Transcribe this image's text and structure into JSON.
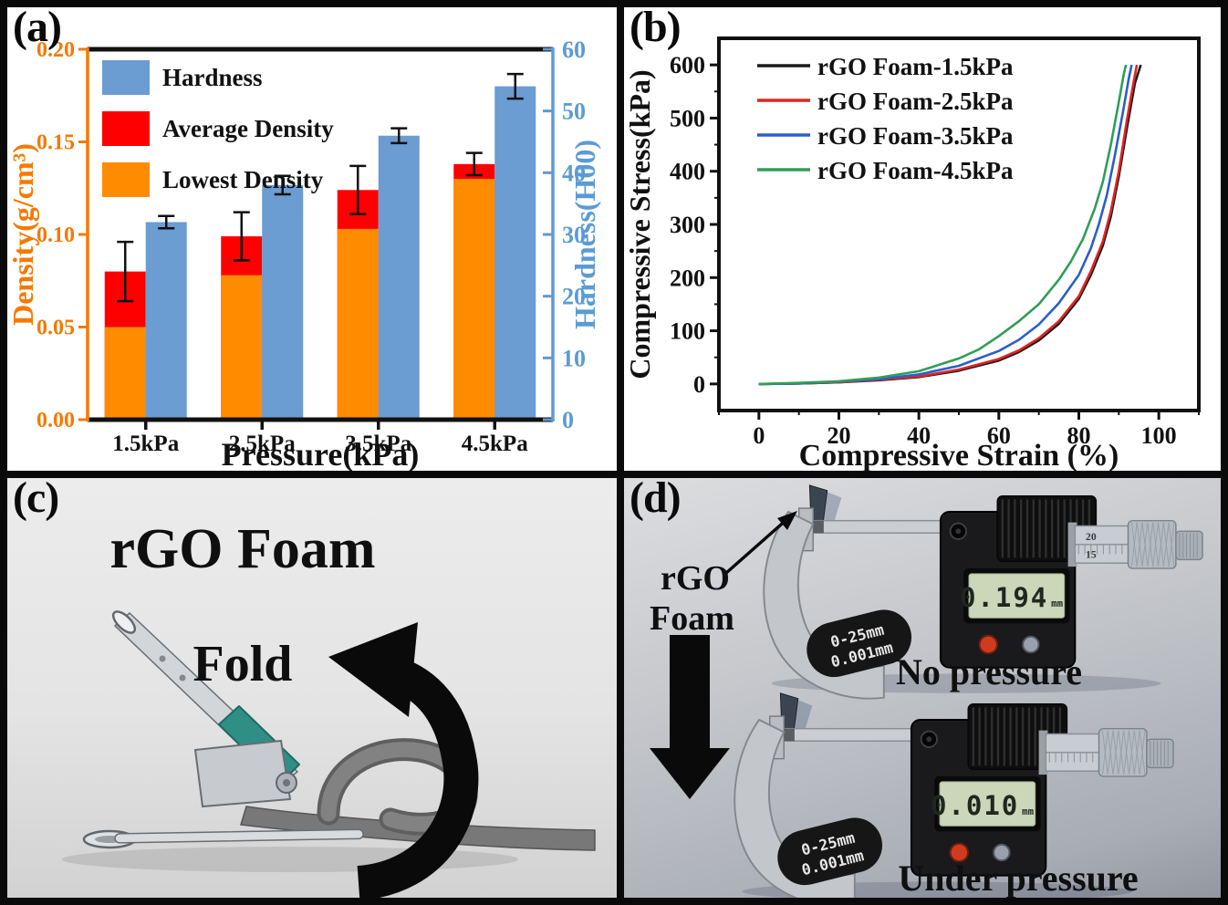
{
  "panels": {
    "a": {
      "label": "(a)"
    },
    "b": {
      "label": "(b)"
    },
    "c": {
      "label": "(c)"
    },
    "d": {
      "label": "(d)"
    }
  },
  "chart_data": [
    {
      "id": "a",
      "type": "bar",
      "xlabel": "Pressure(kPa)",
      "ylabel_left": "Density(g/cm³)",
      "ylabel_right": "Hardness(H00)",
      "categories": [
        "1.5kPa",
        "2.5kPa",
        "3.5kPa",
        "4.5kPa"
      ],
      "left_axis": {
        "min": 0,
        "max": 0.2,
        "ticks": [
          0.0,
          0.05,
          0.1,
          0.15,
          0.2
        ],
        "decimals": 2,
        "color": "#f57900"
      },
      "right_axis": {
        "min": 0,
        "max": 60,
        "ticks": [
          0,
          10,
          20,
          30,
          40,
          50,
          60
        ],
        "decimals": 0,
        "color": "#5b9bd5"
      },
      "series": [
        {
          "name": "Hardness",
          "axis": "right",
          "color": "#6b9cd2",
          "values": [
            32,
            38,
            46,
            54
          ],
          "errors": [
            1.0,
            1.5,
            1.2,
            2.0
          ]
        },
        {
          "name": "Average Density",
          "axis": "left",
          "color": "#fe0000",
          "values": [
            0.08,
            0.099,
            0.124,
            0.138
          ],
          "errors": [
            0.016,
            0.013,
            0.013,
            0.006
          ]
        },
        {
          "name": "Lowest Density",
          "axis": "left",
          "color": "#ff8c00",
          "values": [
            0.05,
            0.078,
            0.103,
            0.13
          ]
        }
      ]
    },
    {
      "id": "b",
      "type": "line",
      "xlabel": "Compressive Strain (%)",
      "ylabel": "Compressive Stress(kPa)",
      "xlim": [
        -10,
        110
      ],
      "ylim": [
        -50,
        650
      ],
      "xticks": [
        0,
        20,
        40,
        60,
        80,
        100
      ],
      "yticks": [
        0,
        100,
        200,
        300,
        400,
        500,
        600
      ],
      "series": [
        {
          "name": "rGO Foam-1.5kPa",
          "color": "#1a1a1a",
          "points": [
            [
              0,
              0
            ],
            [
              10,
              1
            ],
            [
              20,
              3
            ],
            [
              30,
              7
            ],
            [
              40,
              13
            ],
            [
              50,
              25
            ],
            [
              60,
              44
            ],
            [
              65,
              60
            ],
            [
              70,
              82
            ],
            [
              75,
              113
            ],
            [
              80,
              160
            ],
            [
              83,
              205
            ],
            [
              86,
              260
            ],
            [
              88,
              315
            ],
            [
              90,
              390
            ],
            [
              92,
              480
            ],
            [
              94,
              565
            ],
            [
              95.5,
              600
            ]
          ]
        },
        {
          "name": "rGO Foam-2.5kPa",
          "color": "#e02424",
          "points": [
            [
              0,
              0
            ],
            [
              10,
              1
            ],
            [
              20,
              3
            ],
            [
              30,
              8
            ],
            [
              40,
              14
            ],
            [
              50,
              27
            ],
            [
              60,
              47
            ],
            [
              65,
              63
            ],
            [
              70,
              86
            ],
            [
              75,
              118
            ],
            [
              80,
              165
            ],
            [
              83,
              212
            ],
            [
              86,
              268
            ],
            [
              88,
              325
            ],
            [
              90,
              400
            ],
            [
              92,
              495
            ],
            [
              93.5,
              560
            ],
            [
              94.5,
              600
            ]
          ]
        },
        {
          "name": "rGO Foam-3.5kPa",
          "color": "#2b5fc7",
          "points": [
            [
              0,
              0
            ],
            [
              10,
              1
            ],
            [
              20,
              4
            ],
            [
              30,
              9
            ],
            [
              40,
              18
            ],
            [
              50,
              34
            ],
            [
              60,
              62
            ],
            [
              65,
              83
            ],
            [
              70,
              112
            ],
            [
              75,
              152
            ],
            [
              80,
              205
            ],
            [
              83,
              255
            ],
            [
              85,
              300
            ],
            [
              87,
              355
            ],
            [
              89,
              430
            ],
            [
              91,
              510
            ],
            [
              92.5,
              575
            ],
            [
              93.2,
              600
            ]
          ]
        },
        {
          "name": "rGO Foam-4.5kPa",
          "color": "#2f9e57",
          "points": [
            [
              0,
              0
            ],
            [
              10,
              2
            ],
            [
              20,
              5
            ],
            [
              30,
              12
            ],
            [
              40,
              24
            ],
            [
              50,
              48
            ],
            [
              55,
              65
            ],
            [
              60,
              90
            ],
            [
              65,
              118
            ],
            [
              70,
              150
            ],
            [
              75,
              196
            ],
            [
              78,
              230
            ],
            [
              81,
              272
            ],
            [
              84,
              330
            ],
            [
              86,
              380
            ],
            [
              88,
              450
            ],
            [
              90,
              530
            ],
            [
              91.3,
              585
            ],
            [
              91.8,
              600
            ]
          ]
        }
      ]
    }
  ],
  "panel_c": {
    "title": "rGO Foam",
    "annotation": "Fold"
  },
  "panel_d": {
    "foam_label_line1": "rGO",
    "foam_label_line2": "Foam",
    "caption_top": "No pressure",
    "caption_bottom": "Under pressure",
    "range_line1": "0-25mm",
    "range_line2": "0.001mm",
    "reading_top": "0.194",
    "reading_bottom": "0.010",
    "reading_unit": "mm",
    "sleeve_numbers": [
      "20",
      "15"
    ]
  }
}
